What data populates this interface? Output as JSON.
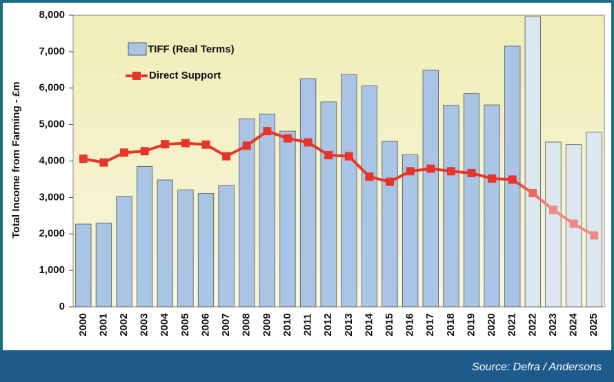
{
  "chart_data": {
    "type": "bar_line",
    "y_label": "Total Income from Farming - £m",
    "source": "Source: Defra / Andersons",
    "categories": [
      "2000",
      "2001",
      "2002",
      "2003",
      "2004",
      "2005",
      "2006",
      "2007",
      "2008",
      "2009",
      "2010",
      "2011",
      "2012",
      "2013",
      "2014",
      "2015",
      "2016",
      "2017",
      "2018",
      "2019",
      "2020",
      "2021",
      "2022",
      "2023",
      "2024",
      "2025"
    ],
    "series": [
      {
        "name": "TIFF (Real Terms)",
        "type": "bar",
        "color": "#a9c4e4",
        "colors": [
          "#a9c4e4",
          "#a9c4e4",
          "#a9c4e4",
          "#a9c4e4",
          "#a9c4e4",
          "#a9c4e4",
          "#a9c4e4",
          "#a9c4e4",
          "#a9c4e4",
          "#a9c4e4",
          "#a9c4e4",
          "#a9c4e4",
          "#a9c4e4",
          "#a9c4e4",
          "#a9c4e4",
          "#a9c4e4",
          "#a9c4e4",
          "#a9c4e4",
          "#a9c4e4",
          "#a9c4e4",
          "#a9c4e4",
          "#a9c4e4",
          "#dbe8f0",
          "#dbe8f0",
          "#dbe8f0",
          "#dbe8f0"
        ],
        "values": [
          2270,
          2300,
          3030,
          3850,
          3480,
          3210,
          3110,
          3330,
          5160,
          5290,
          4820,
          6260,
          5620,
          6370,
          6060,
          4540,
          4170,
          6490,
          5530,
          5850,
          5540,
          7150,
          7960,
          4520,
          4450,
          4790
        ]
      },
      {
        "name": "Direct Support",
        "type": "line",
        "color": "#e8352a",
        "colors": [
          "#e8352a",
          "#e8352a",
          "#e8352a",
          "#e8352a",
          "#e8352a",
          "#e8352a",
          "#e8352a",
          "#e8352a",
          "#e8352a",
          "#e8352a",
          "#e8352a",
          "#e8352a",
          "#e8352a",
          "#e8352a",
          "#e8352a",
          "#e8352a",
          "#e8352a",
          "#e8352a",
          "#e8352a",
          "#e8352a",
          "#e8352a",
          "#e8352a",
          "#ec6a60",
          "#f28a84",
          "#f28a84",
          "#f28a84"
        ],
        "values": [
          4060,
          3960,
          4230,
          4270,
          4460,
          4490,
          4450,
          4130,
          4420,
          4820,
          4620,
          4510,
          4160,
          4130,
          3570,
          3430,
          3720,
          3790,
          3720,
          3670,
          3520,
          3490,
          3120,
          2660,
          2280,
          1960
        ]
      }
    ],
    "ylim": [
      0,
      8000
    ],
    "yticks": [
      {
        "value": 0,
        "label": "0"
      },
      {
        "value": 1000,
        "label": "1,000"
      },
      {
        "value": 2000,
        "label": "2,000"
      },
      {
        "value": 3000,
        "label": "3,000"
      },
      {
        "value": 4000,
        "label": "4,000"
      },
      {
        "value": 5000,
        "label": "5,000"
      },
      {
        "value": 6000,
        "label": "6,000"
      },
      {
        "value": 7000,
        "label": "7,000"
      },
      {
        "value": 8000,
        "label": "8,000"
      }
    ],
    "legend": "top-left"
  }
}
